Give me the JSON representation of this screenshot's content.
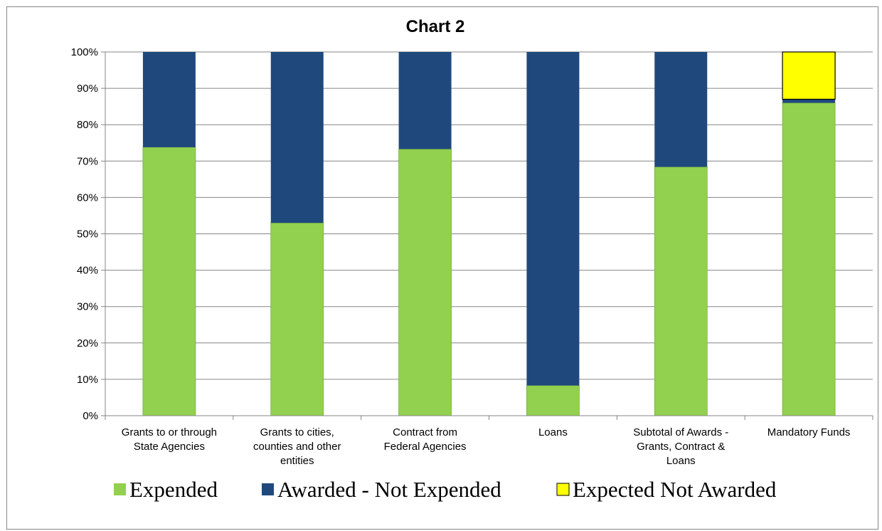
{
  "chart_data": {
    "type": "bar",
    "stacked": true,
    "title": "Chart 2",
    "xlabel": "",
    "ylabel": "",
    "ylim": [
      0,
      100
    ],
    "yticks": [
      "0%",
      "10%",
      "20%",
      "30%",
      "40%",
      "50%",
      "60%",
      "70%",
      "80%",
      "90%",
      "100%"
    ],
    "grid": true,
    "legend_position": "bottom",
    "categories": [
      [
        "Grants to or through",
        "State Agencies"
      ],
      [
        "Grants to cities,",
        "counties and other",
        "entities"
      ],
      [
        "Contract from",
        "Federal Agencies"
      ],
      [
        "Loans"
      ],
      [
        "Subtotal of Awards -",
        "Grants, Contract &",
        "Loans"
      ],
      [
        "Mandatory Funds"
      ]
    ],
    "series": [
      {
        "name": "Expended",
        "color": "#92d050",
        "values": [
          73.8,
          53.0,
          73.3,
          8.3,
          68.4,
          86.0
        ]
      },
      {
        "name": "Awarded - Not Expended",
        "color": "#1f497d",
        "values": [
          26.2,
          47.0,
          26.7,
          91.7,
          31.6,
          1.0
        ]
      },
      {
        "name": "Expected Not Awarded",
        "color": "#ffff00",
        "values": [
          0,
          0,
          0,
          0,
          0,
          13.0
        ]
      }
    ]
  }
}
